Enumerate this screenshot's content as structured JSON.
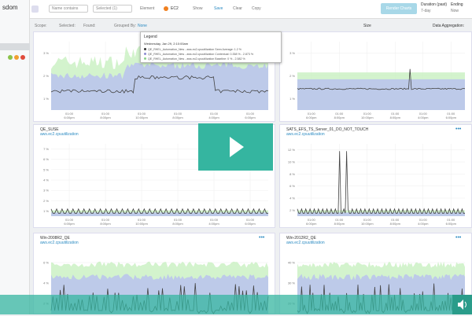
{
  "app": {
    "logo": "sdom"
  },
  "toolbar": {
    "search": "Name contains",
    "selected": "Selected (1)",
    "element": "Element",
    "ec2": "EC2",
    "show": "Show",
    "save": "Save",
    "clear": "Clear",
    "copy": "Copy",
    "render": "Render Charts",
    "duration_label": "Duration (past)",
    "duration": "7-day",
    "ending_label": "Ending",
    "ending": "Now"
  },
  "filters": {
    "scope": "Scope:",
    "selected": "Selected:",
    "found": "Found:",
    "grouped_by": "Grouped By:",
    "grouped_value": "None",
    "size": "Size",
    "aggregation": "Data Aggregation:"
  },
  "legend": {
    "title": "Legend",
    "date": "Wednesday, Jan 29, 2:10:00am",
    "items": [
      "QE_RHEL_Automation_New - aws.ec2.cpuutilization Seen Average: 1.2 %",
      "QE_RHEL_Automation_New - aws.ec2.cpuutilization Contextual: 0.358 % - 2.873 %",
      "QE_RHEL_Automation_New - aws.ec2.cpuutilization Baseline: 0 % - 2.582 %"
    ]
  },
  "panels": [
    {
      "yticks": [
        "3 %",
        "2 %",
        "1 %"
      ],
      "xticks": [
        "01:00",
        "01:00",
        "01:00",
        "01:00",
        "01:00",
        "01:00"
      ],
      "xdates": [
        "6:00pm",
        "8:00pm",
        "10:00pm",
        "8:00pm",
        "4:00pm",
        "6:00pm"
      ]
    },
    {
      "yticks": [
        "3 %",
        "2 %",
        "1 %"
      ],
      "xticks": [
        "01:00",
        "01:00",
        "01:00",
        "01:00",
        "01:00",
        "01:00"
      ],
      "xdates": [
        "6:00pm",
        "8:00pm",
        "10:00pm",
        "8:00pm",
        "4:00pm",
        "6:00pm"
      ]
    },
    {
      "title": "QE_SUSE",
      "metric": "aws.ec2.cpuutilization",
      "yticks": [
        "7 %",
        "6 %",
        "5 %",
        "4 %",
        "3 %",
        "2 %",
        "1 %"
      ],
      "xticks": [
        "01:00",
        "01:00",
        "01:00",
        "01:00",
        "01:00",
        "01:00"
      ],
      "xdates": [
        "6:00pm",
        "8:00pm",
        "10:00pm",
        "8:00pm",
        "4:00pm",
        "6:00pm"
      ]
    },
    {
      "title": "SATS_EFS_TS_Server_01_DO_NOT_TOUCH",
      "metric": "aws.ec2.cpuutilization",
      "yticks": [
        "12 %",
        "10 %",
        "8 %",
        "6 %",
        "4 %",
        "2 %"
      ],
      "xticks": [
        "01:00",
        "01:00",
        "01:00",
        "01:00",
        "01:00",
        "01:00"
      ],
      "xdates": [
        "6:00pm",
        "8:00pm",
        "10:00pm",
        "8:00pm",
        "4:00pm",
        "6:00pm"
      ]
    },
    {
      "title": "Win-2008R2_QE",
      "metric": "aws.ec2.cpuutilization",
      "yticks": [
        "6 %",
        "4 %",
        "2 %"
      ]
    },
    {
      "title": "Win-2012R2_QE",
      "metric": "aws.ec2.cpuutilization",
      "yticks": [
        "40 %",
        "30 %",
        "20 %"
      ]
    }
  ]
}
